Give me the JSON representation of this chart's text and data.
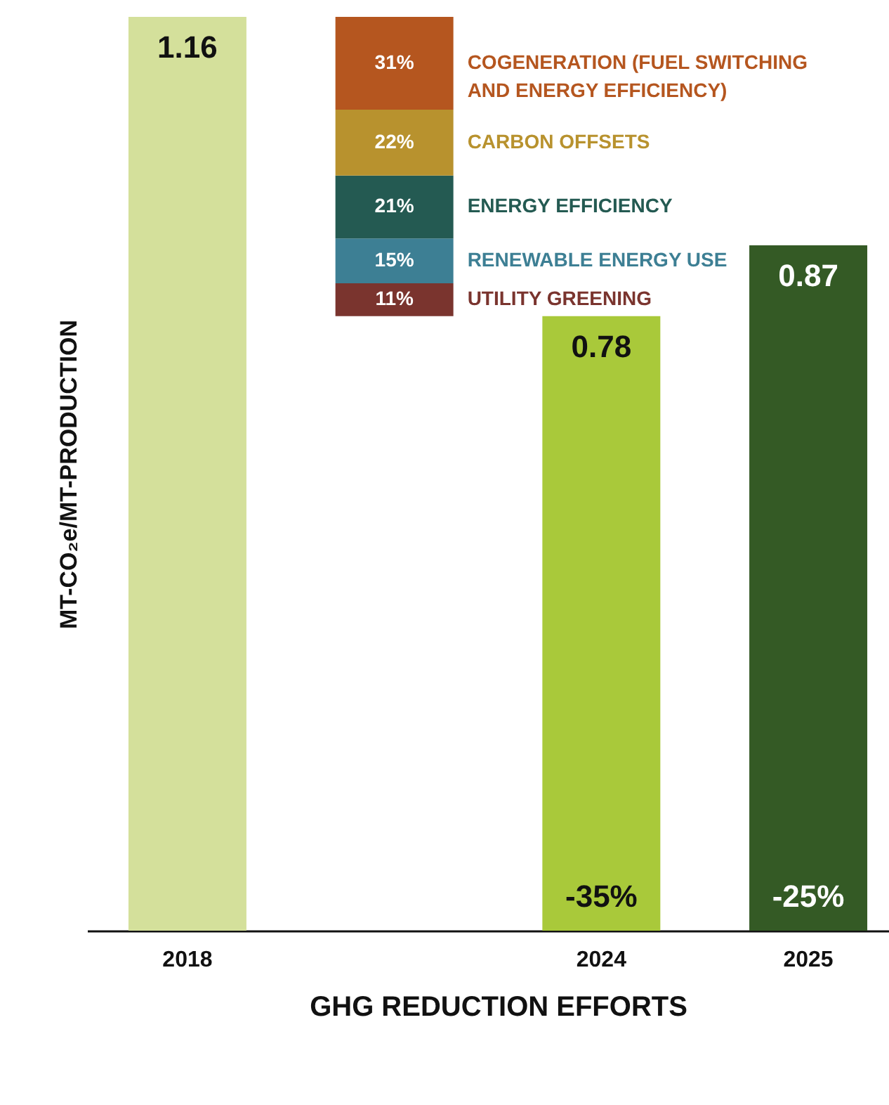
{
  "chart_data": {
    "type": "bar",
    "xlabel": "GHG REDUCTION EFFORTS",
    "ylabel": "MT-CO₂e/MT-PRODUCTION",
    "categories": [
      "2018",
      null,
      "2024",
      "2025"
    ],
    "tick_labels": "x",
    "stacked": true,
    "series": [
      {
        "colors": [
          "#d4e09b",
          null,
          "#a9c93a",
          "#345a25"
        ],
        "values": [
          1.16,
          null,
          0.78,
          0.87
        ],
        "value_labels": [
          "1.16",
          null,
          "0.78",
          "0.87"
        ]
      },
      {
        "name": "UTILITY GREENING",
        "color": "#7a342e",
        "axis": "y2",
        "values": [
          null,
          11,
          null,
          null
        ],
        "value_labels": [
          null,
          "11%",
          null,
          null
        ]
      },
      {
        "name": "RENEWABLE ENERGY USE",
        "color": "#3d7f94",
        "axis": "y2",
        "values": [
          null,
          15,
          null,
          null
        ],
        "value_labels": [
          null,
          "15%",
          null,
          null
        ]
      },
      {
        "name": "ENERGY EFFICIENCY",
        "color": "#245a52",
        "axis": "y2",
        "values": [
          null,
          21,
          null,
          null
        ],
        "value_labels": [
          null,
          "21%",
          null,
          null
        ]
      },
      {
        "name": "CARBON OFFSETS",
        "color": "#b8922e",
        "axis": "y2",
        "values": [
          null,
          22,
          null,
          null
        ],
        "value_labels": [
          null,
          "22%",
          null,
          null
        ]
      },
      {
        "name": "COGENERATION (FUEL SWITCHING AND ENERGY EFFICIENCY)",
        "color": "#b5561f",
        "axis": "y2",
        "values": [
          null,
          31,
          null,
          null
        ],
        "value_labels": [
          null,
          "31%",
          null,
          null
        ]
      }
    ],
    "annotations": [
      "-35%",
      "-25%"
    ]
  }
}
